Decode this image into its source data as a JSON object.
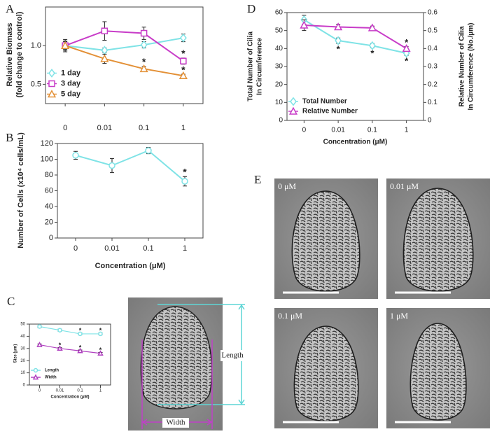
{
  "chart_data": [
    {
      "panel": "A",
      "type": "line",
      "ylabel": [
        "Relative Biomass",
        "(fold change to control)"
      ],
      "categories": [
        "0",
        "0.01",
        "0.1",
        "1"
      ],
      "ylim": [
        0.25,
        1.5
      ],
      "yticks": [
        0.5,
        {
          "value": 1,
          "label": "1.0"
        }
      ],
      "legend": "lower left",
      "series": [
        {
          "name": "1 day",
          "color": "#7fe3e6",
          "marker": "diamond",
          "values": [
            1.0,
            0.94,
            1.01,
            1.1
          ],
          "errors": [
            0.05,
            0.03,
            0.04,
            0.05
          ],
          "significance": [
            null,
            null,
            null,
            null
          ]
        },
        {
          "name": "3 day",
          "color": "#c83cc8",
          "marker": "square",
          "values": [
            1.0,
            1.19,
            1.16,
            0.8
          ],
          "errors": [
            0.06,
            0.12,
            0.08,
            0.04
          ],
          "significance": [
            null,
            null,
            null,
            "*"
          ]
        },
        {
          "name": "5 day",
          "color": "#e39036",
          "marker": "triangle",
          "values": [
            1.0,
            0.83,
            0.7,
            0.61
          ],
          "errors": [
            0.08,
            0.06,
            0.03,
            0.02
          ],
          "significance": [
            null,
            null,
            "*",
            "*"
          ]
        }
      ]
    },
    {
      "panel": "B",
      "type": "line",
      "ylabel": [
        "Number of Cells (x10⁴ cells/mL)"
      ],
      "xlabel": "Concentration (μM)",
      "categories": [
        "0",
        "0.01",
        "0.1",
        "1"
      ],
      "ylim": [
        0,
        120
      ],
      "yticks": [
        0,
        20,
        40,
        60,
        80,
        100,
        120
      ],
      "color": "#7fe3e6",
      "marker": "circle",
      "values": [
        105,
        92,
        111,
        72
      ],
      "errors": [
        5,
        9,
        4,
        6
      ],
      "significance": [
        null,
        null,
        null,
        "*"
      ]
    },
    {
      "panel": "C",
      "type": "line",
      "ylabel": [
        "Size (μm)"
      ],
      "xlabel": "Concentration (μM)",
      "categories": [
        "0",
        "0.01",
        "0.1",
        "1"
      ],
      "ylim": [
        0,
        50
      ],
      "yticks": [
        0,
        10,
        20,
        30,
        40,
        50
      ],
      "legend": "lower left",
      "series": [
        {
          "name": "Length",
          "color": "#7fe3e6",
          "marker": "circle",
          "values": [
            48,
            45,
            42,
            42
          ],
          "errors": [
            0.8,
            0.8,
            0.8,
            0.8
          ],
          "significance": [
            null,
            null,
            "*",
            "*"
          ]
        },
        {
          "name": "Width",
          "color": "#b040c0",
          "marker": "triangle",
          "values": [
            33,
            30,
            28,
            26
          ],
          "errors": [
            0.7,
            0.7,
            0.7,
            0.7
          ],
          "significance": [
            null,
            "*",
            "*",
            "*"
          ]
        }
      ]
    },
    {
      "panel": "D",
      "type": "line",
      "ylabel": [
        "Total Number of Cilia",
        "In Circumference"
      ],
      "y2label": [
        "Relative Number of Cilia",
        "In Circumference (No./μm)"
      ],
      "xlabel": "Concentration (μM)",
      "categories": [
        "0",
        "0.01",
        "0.1",
        "1"
      ],
      "ylim": [
        0,
        60
      ],
      "yticks": [
        0,
        10,
        20,
        30,
        40,
        50,
        60
      ],
      "y2lim": [
        0,
        0.6
      ],
      "y2ticks": [
        0,
        0.1,
        0.2,
        0.3,
        0.4,
        0.5,
        0.6
      ],
      "legend": "lower left",
      "series": [
        {
          "name": "Total Number",
          "color": "#7fe3e6",
          "marker": "diamond",
          "values": [
            56,
            44.4,
            41.6,
            37.4
          ],
          "errors": [
            2.5,
            1.5,
            1.2,
            1.2
          ],
          "significance": [
            null,
            "*",
            "*",
            "*"
          ]
        },
        {
          "name": "Relative Number",
          "color": "#c83cc8",
          "marker": "triangle",
          "axis": "y2",
          "values": [
            0.53,
            0.52,
            0.515,
            0.4
          ],
          "errors": [
            0.03,
            0.015,
            0.01,
            0.01
          ],
          "significance": [
            null,
            null,
            null,
            "*"
          ]
        }
      ]
    }
  ],
  "specimen": {
    "length": "Length",
    "width": "Width"
  },
  "micrographs": {
    "panel": "E",
    "labels": [
      "0 μM",
      "0.01 μM",
      "0.1 μM",
      "1 μM"
    ]
  }
}
